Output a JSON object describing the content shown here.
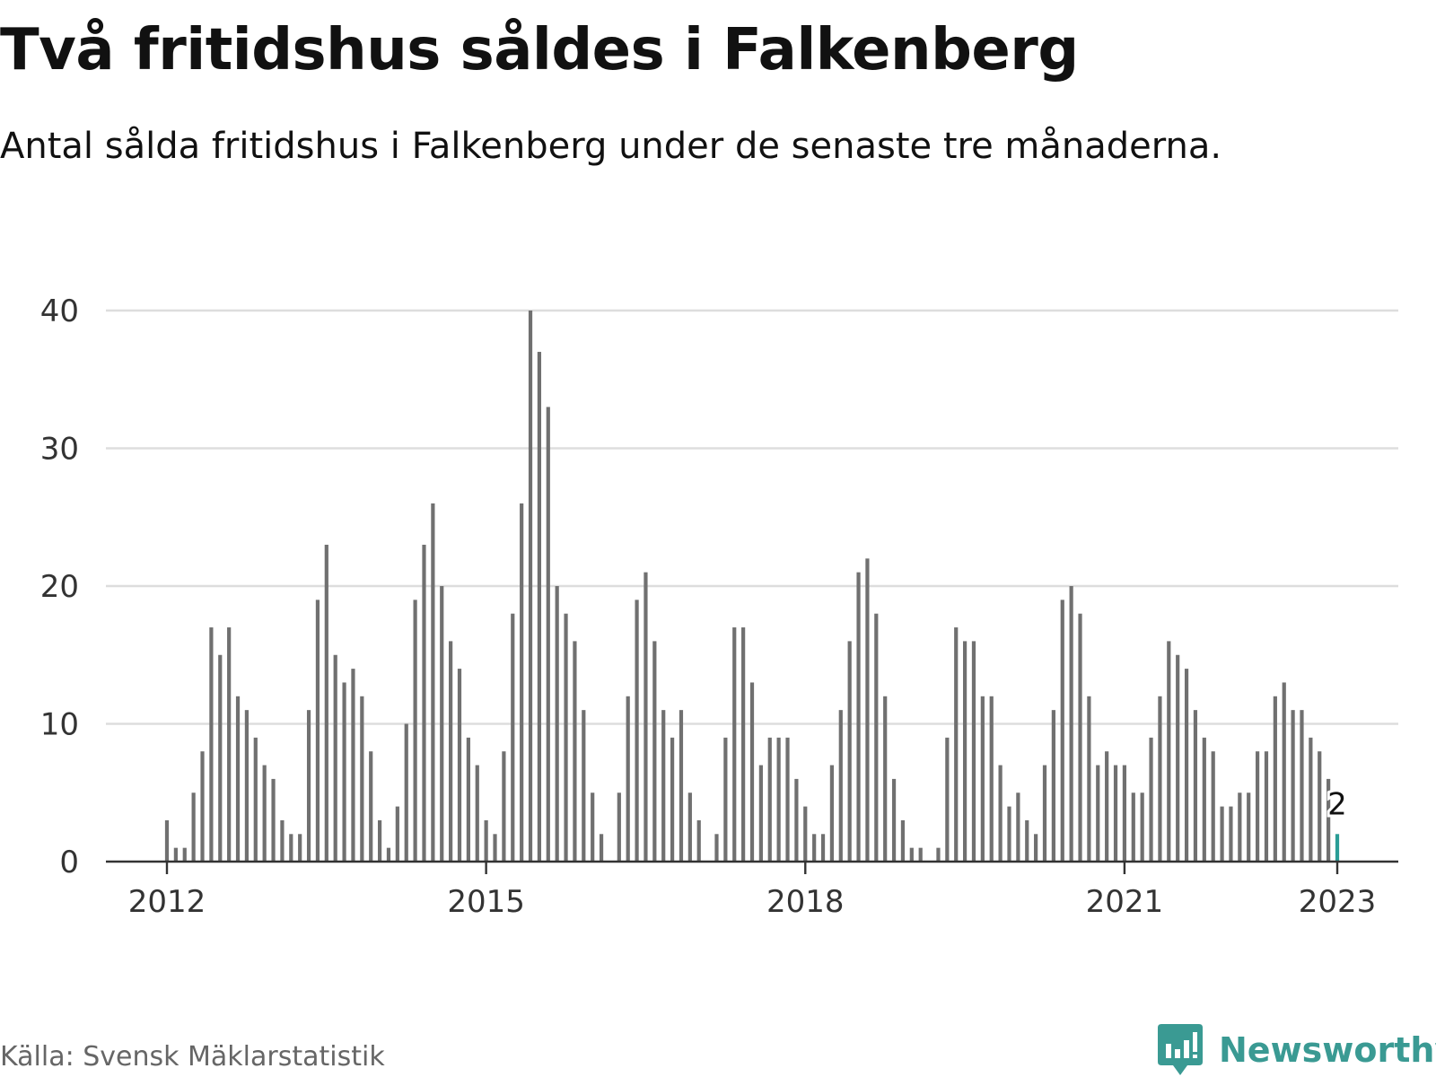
{
  "chart_data": {
    "type": "bar",
    "title": "Två fritidshus såldes i Falkenberg",
    "subtitle": "Antal sålda fritidshus i Falkenberg under de senaste tre månaderna.",
    "xlabel": "",
    "ylabel": "",
    "ylim": [
      0,
      40
    ],
    "yticks": [
      "0",
      "10",
      "20",
      "30",
      "40"
    ],
    "xticks": [
      {
        "label": "2012",
        "month": "2012-01"
      },
      {
        "label": "2015",
        "month": "2015-01"
      },
      {
        "label": "2018",
        "month": "2018-01"
      },
      {
        "label": "2021",
        "month": "2021-01"
      },
      {
        "label": "2023",
        "month": "2023-01"
      }
    ],
    "grid": true,
    "x_start": "2012-01",
    "x_end": "2023-01",
    "values": [
      3,
      1,
      1,
      5,
      8,
      17,
      15,
      17,
      12,
      11,
      9,
      7,
      6,
      3,
      2,
      2,
      11,
      19,
      23,
      15,
      13,
      14,
      12,
      8,
      3,
      1,
      4,
      10,
      19,
      23,
      26,
      20,
      16,
      14,
      9,
      7,
      3,
      2,
      8,
      18,
      26,
      40,
      37,
      33,
      20,
      18,
      16,
      11,
      5,
      2,
      0,
      5,
      12,
      19,
      21,
      16,
      11,
      9,
      11,
      5,
      3,
      0,
      2,
      9,
      17,
      17,
      13,
      7,
      9,
      9,
      9,
      6,
      4,
      2,
      2,
      7,
      11,
      16,
      21,
      22,
      18,
      12,
      6,
      3,
      1,
      1,
      0,
      1,
      9,
      17,
      16,
      16,
      12,
      12,
      7,
      4,
      5,
      3,
      2,
      7,
      11,
      19,
      20,
      18,
      12,
      7,
      8,
      7,
      7,
      5,
      5,
      9,
      12,
      16,
      15,
      14,
      11,
      9,
      8,
      4,
      4,
      5,
      5,
      8,
      8,
      12,
      13,
      11,
      11,
      9,
      8,
      6,
      2
    ],
    "highlight": {
      "month": "2023-01",
      "value": 2,
      "label": "2",
      "color": "#2a9d96"
    },
    "bar_color": "#707070",
    "grid_color": "#dddddd",
    "axis_color": "#333333"
  },
  "source": "Källa: Svensk Mäklarstatistik",
  "brand": {
    "name": "Newsworthy",
    "color": "#3a9a93",
    "icon": "newsworthy-logo-icon"
  }
}
